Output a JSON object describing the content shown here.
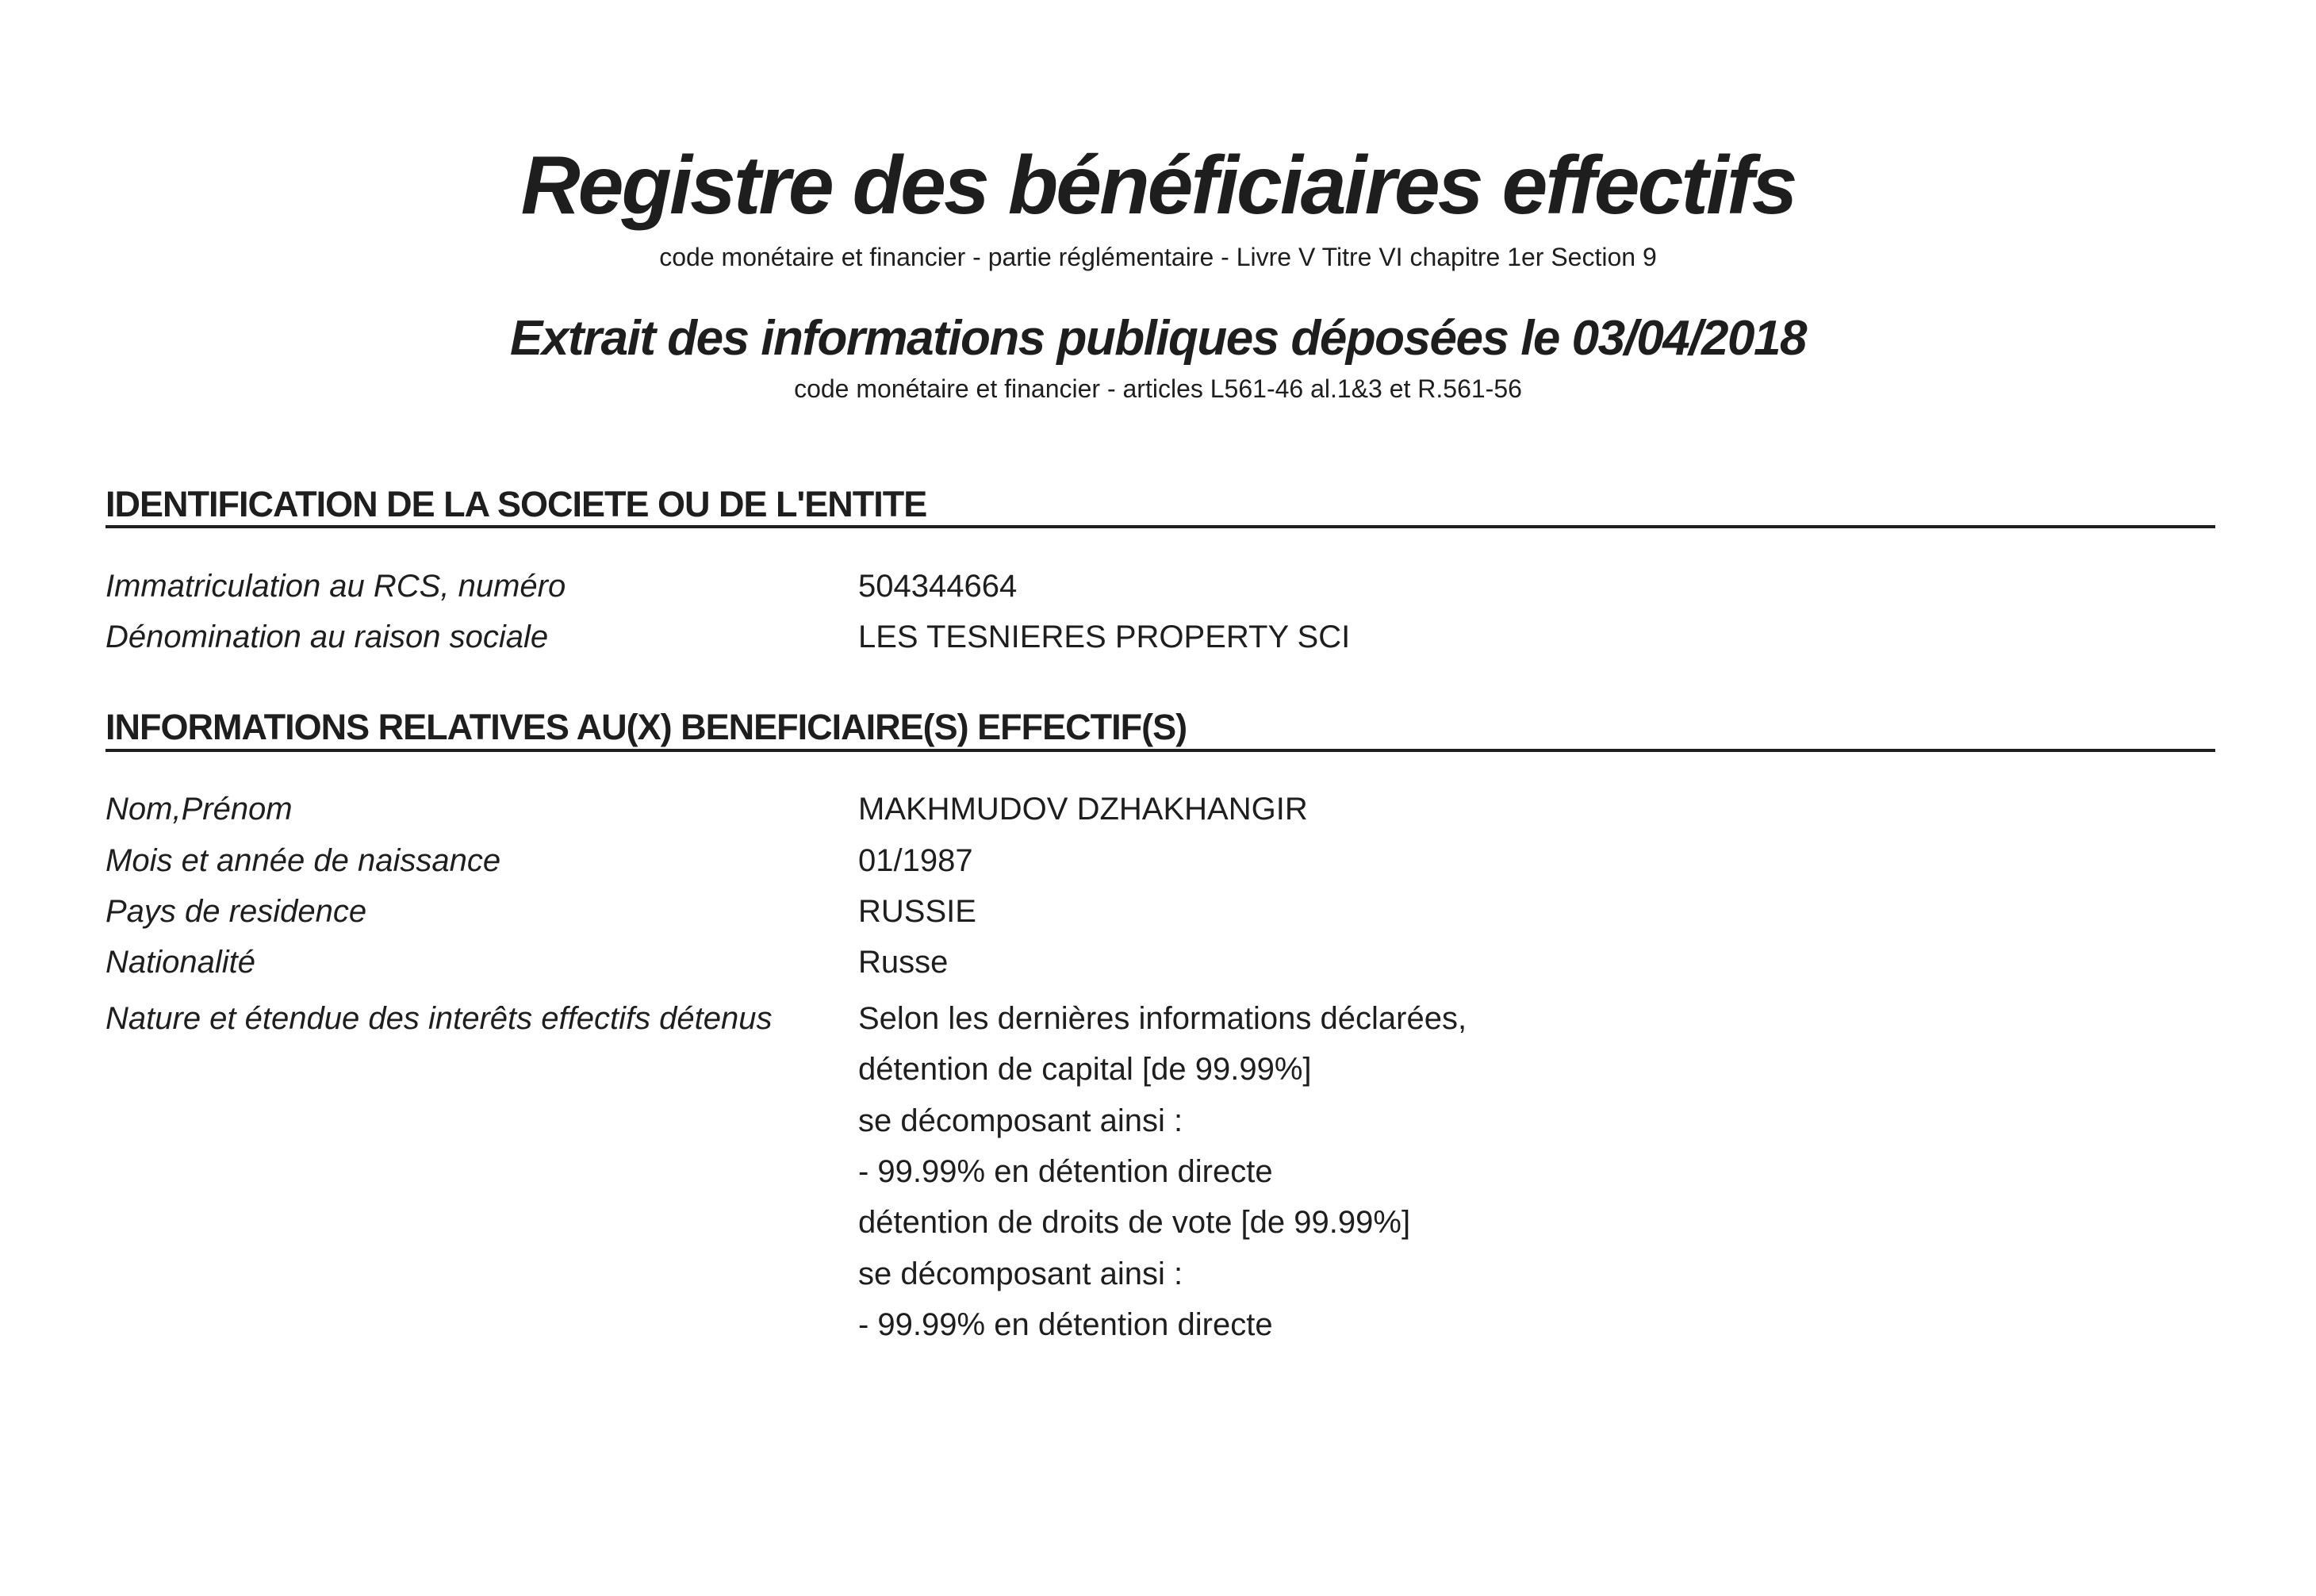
{
  "header": {
    "title": "Registre des bénéficiaires effectifs",
    "subtitle": "code monétaire et financier - partie réglémentaire - Livre V Titre VI chapitre 1er Section 9",
    "extract_title": "Extrait des informations publiques déposées le 03/04/2018",
    "extract_subtitle": "code monétaire et financier - articles L561-46 al.1&3 et R.561-56"
  },
  "identification": {
    "heading": "IDENTIFICATION DE LA SOCIETE OU DE L'ENTITE",
    "rows": [
      {
        "label": "Immatriculation au RCS, numéro",
        "value": "504344664"
      },
      {
        "label": "Dénomination au raison sociale",
        "value": "LES TESNIERES PROPERTY SCI"
      }
    ]
  },
  "beneficiaries": {
    "heading": "INFORMATIONS RELATIVES AU(X) BENEFICIAIRE(S) EFFECTIF(S)",
    "rows": [
      {
        "label": "Nom,Prénom",
        "value": "MAKHMUDOV DZHAKHANGIR"
      },
      {
        "label": "Mois et année de naissance",
        "value": "01/1987"
      },
      {
        "label": "Pays de residence",
        "value": "RUSSIE"
      },
      {
        "label": "Nationalité",
        "value": "Russe"
      }
    ],
    "interests_label": "Nature et étendue des interêts effectifs détenus",
    "interests_lines": [
      "Selon les dernières informations déclarées,",
      "détention de capital [de 99.99%]",
      "se décomposant ainsi :",
      "- 99.99% en détention directe",
      "détention de droits de vote [de 99.99%]",
      "se décomposant ainsi :",
      "- 99.99% en détention directe"
    ]
  }
}
